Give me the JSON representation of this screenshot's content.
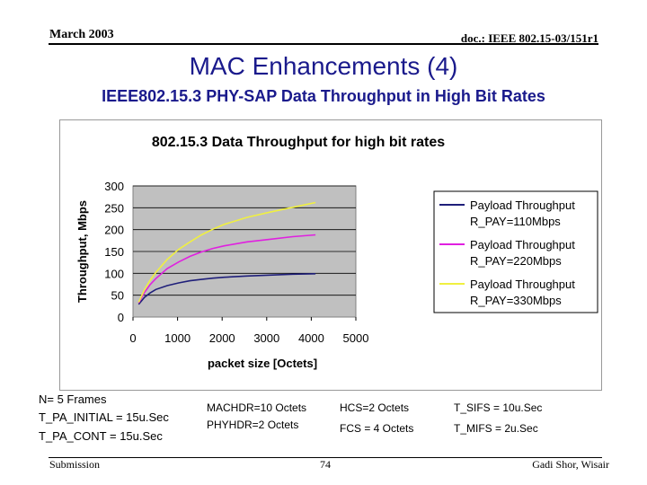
{
  "header": {
    "date": "March 2003",
    "doc": "doc.: IEEE 802.15-03/151r1"
  },
  "title": "MAC Enhancements (4)",
  "subtitle": "IEEE802.15.3 PHY-SAP Data Throughput in High Bit Rates",
  "colors": {
    "title": "#1a1a8c",
    "plot_bg": "#c0c0c0",
    "chart_bg": "#ffffff"
  },
  "chart_data": {
    "type": "line",
    "title": "802.15.3 Data Throughput for high bit rates",
    "xlabel": "packet size [Octets]",
    "ylabel": "Throughput, Mbps",
    "xlim": [
      0,
      5000
    ],
    "ylim": [
      0,
      300
    ],
    "xticks": [
      "0",
      "1000",
      "2000",
      "3000",
      "4000",
      "5000"
    ],
    "yticks": [
      "0",
      "50",
      "100",
      "150",
      "200",
      "250",
      "300"
    ],
    "grid": true,
    "legend_position": "right",
    "x": [
      128,
      256,
      384,
      512,
      768,
      1024,
      1280,
      1536,
      1792,
      2048,
      2560,
      3072,
      3584,
      4095
    ],
    "series": [
      {
        "name_line1": "Payload Throughput",
        "name_line2": "R_PAY=110Mbps",
        "color": "#1f1f7a",
        "values": [
          29,
          45,
          55,
          63,
          72,
          78,
          83,
          86,
          89,
          91,
          94,
          96,
          98,
          99
        ]
      },
      {
        "name_line1": "Payload Throughput",
        "name_line2": "R_PAY=220Mbps",
        "color": "#e020e0",
        "values": [
          32,
          56,
          74,
          88,
          111,
          126,
          139,
          149,
          157,
          163,
          172,
          178,
          184,
          188
        ]
      },
      {
        "name_line1": "Payload Throughput",
        "name_line2": "R_PAY=330Mbps",
        "color": "#f0f040",
        "values": [
          34,
          62,
          84,
          102,
          132,
          155,
          172,
          188,
          201,
          212,
          228,
          240,
          251,
          262
        ]
      }
    ]
  },
  "notes": {
    "frames": "N= 5 Frames",
    "pa_initial": "T_PA_INITIAL = 15u.Sec",
    "pa_cont": "T_PA_CONT = 15u.Sec",
    "machdr": "MACHDR=10 Octets",
    "phyhdr": "PHYHDR=2 Octets",
    "hcs": "HCS=2 Octets",
    "fcs": "FCS = 4 Octets",
    "sifs": "T_SIFS = 10u.Sec",
    "mifs": "T_MIFS = 2u.Sec"
  },
  "footer": {
    "left": "Submission",
    "page": "74",
    "right": "Gadi Shor, Wisair"
  }
}
